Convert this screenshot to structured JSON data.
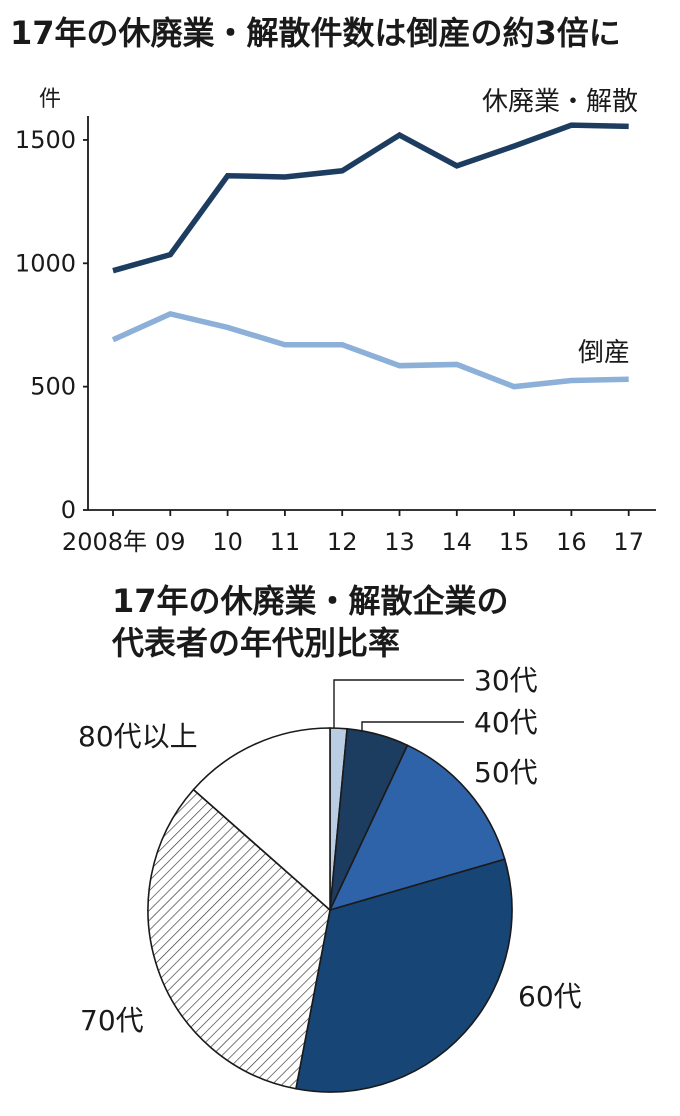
{
  "chart_data": [
    {
      "type": "line",
      "title": "17年の休廃業・解散件数は倒産の約3倍に",
      "ylabel": "件",
      "ylim": [
        0,
        1650
      ],
      "yticks": [
        0,
        500,
        1000,
        1500
      ],
      "x": [
        "2008年",
        "09",
        "10",
        "11",
        "12",
        "13",
        "14",
        "15",
        "16",
        "17"
      ],
      "grid": false,
      "series": [
        {
          "name": "休廃業・解散",
          "color": "#1d3d60",
          "values": [
            970,
            1035,
            1355,
            1350,
            1375,
            1520,
            1395,
            1475,
            1560,
            1555
          ]
        },
        {
          "name": "倒産",
          "color": "#8cb0d8",
          "values": [
            690,
            795,
            740,
            670,
            670,
            585,
            590,
            500,
            525,
            530
          ]
        }
      ]
    },
    {
      "type": "pie",
      "title": [
        "17年の休廃業・解散企業の",
        "代表者の年代別比率"
      ],
      "slices": [
        {
          "label": "30代",
          "value": 1.5,
          "color": "#b9cde3"
        },
        {
          "label": "40代",
          "value": 5.5,
          "color": "#1d3d60"
        },
        {
          "label": "50代",
          "value": 13.5,
          "color": "#2f63a9"
        },
        {
          "label": "60代",
          "value": 32.5,
          "color": "#174575"
        },
        {
          "label": "70代",
          "value": 33.5,
          "color": "hatched"
        },
        {
          "label": "80代以上",
          "value": 13.5,
          "color": "#ffffff"
        }
      ]
    }
  ]
}
